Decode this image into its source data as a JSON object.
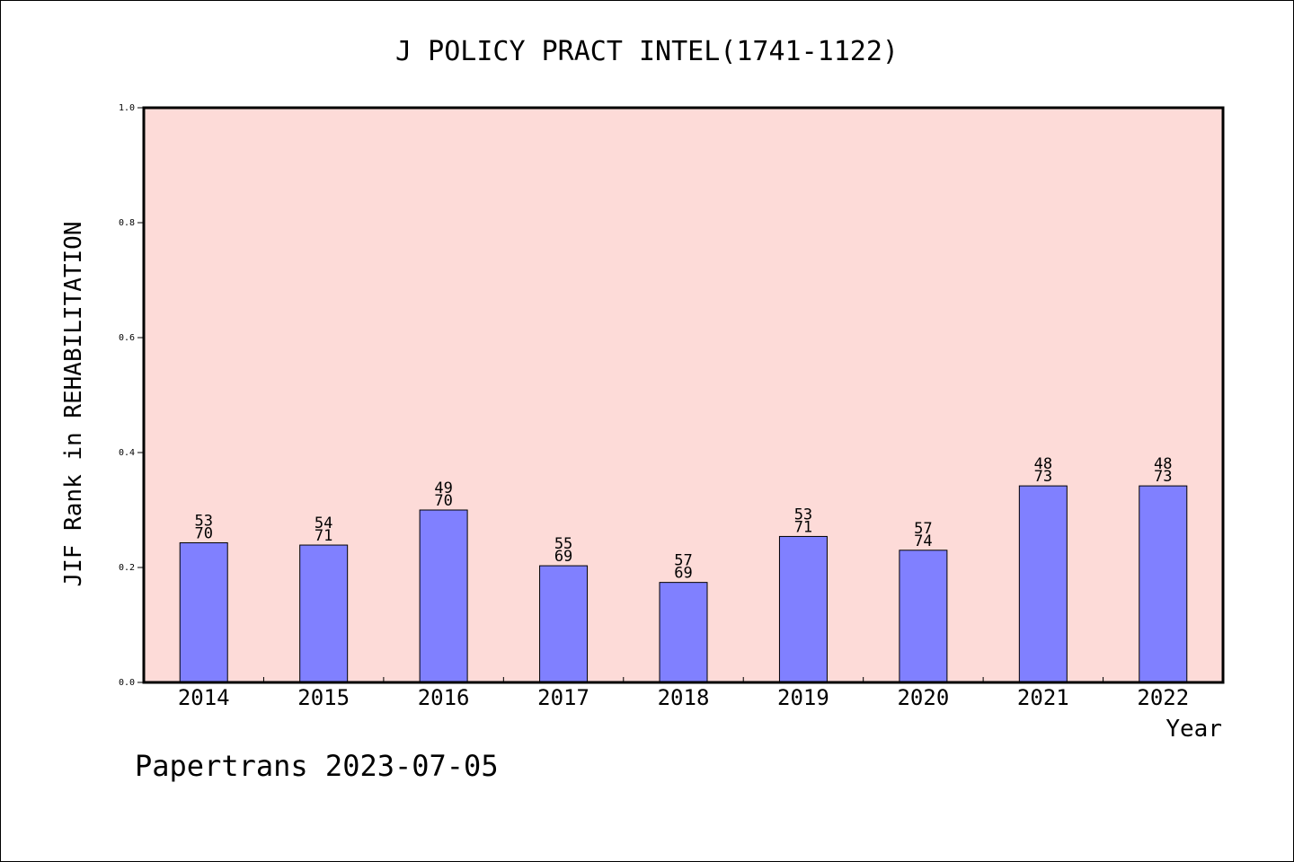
{
  "chart_data": {
    "type": "bar",
    "title": "J POLICY PRACT INTEL(1741-1122)",
    "xlabel": "Year",
    "ylabel": "JIF Rank in REHABILITATION",
    "ylim": [
      0,
      1.0
    ],
    "yticks": [
      "0.0",
      "0.2",
      "0.4",
      "0.6",
      "0.8",
      "1.0"
    ],
    "categories": [
      "2014",
      "2015",
      "2016",
      "2017",
      "2018",
      "2019",
      "2020",
      "2021",
      "2022"
    ],
    "values": [
      0.243,
      0.239,
      0.3,
      0.203,
      0.174,
      0.254,
      0.23,
      0.342,
      0.342
    ],
    "rank_labels": [
      "53",
      "54",
      "49",
      "55",
      "57",
      "53",
      "57",
      "48",
      "48"
    ],
    "total_labels": [
      "70",
      "71",
      "70",
      "69",
      "69",
      "71",
      "74",
      "73",
      "73"
    ],
    "grid": false,
    "colors": {
      "plot_bg": "#fddbd8",
      "bar": "#8080ff",
      "frame": "#000000"
    }
  },
  "footer": {
    "text": "Papertrans 2023-07-05"
  }
}
